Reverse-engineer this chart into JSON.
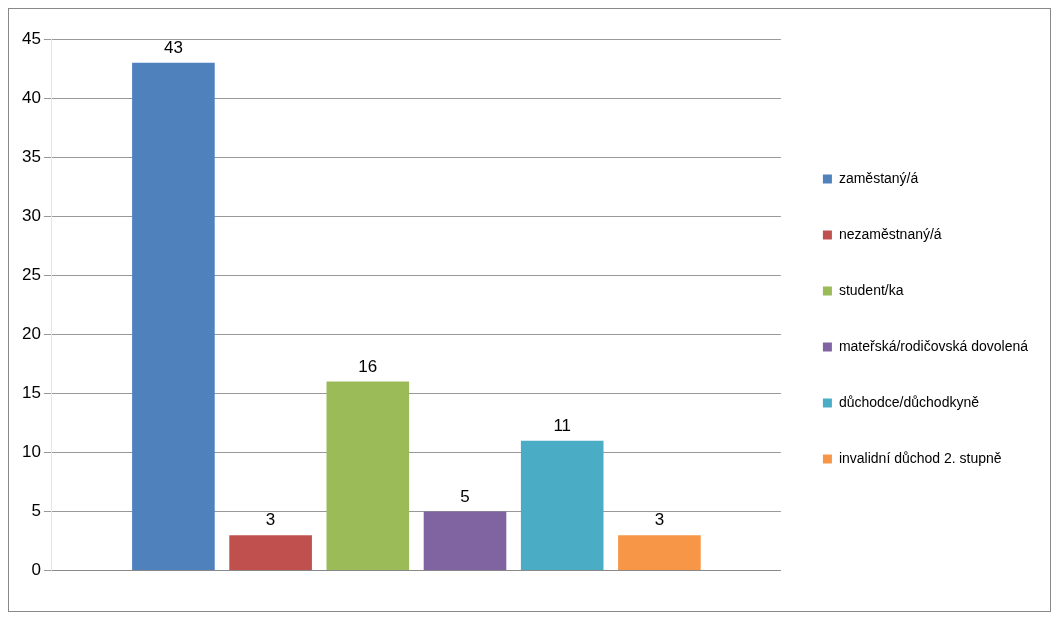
{
  "chart_data": {
    "type": "bar",
    "categories": [
      null
    ],
    "series": [
      {
        "name": "zaměstaný/á",
        "color": "#4f81bd",
        "values": [
          43
        ]
      },
      {
        "name": "nezaměstnaný/á",
        "color": "#c0504d",
        "values": [
          3
        ]
      },
      {
        "name": "student/ka",
        "color": "#9bbb59",
        "values": [
          16
        ]
      },
      {
        "name": "mateřská/rodičovská dovolená",
        "color": "#8064a2",
        "values": [
          5
        ]
      },
      {
        "name": "důchodce/důchodkyně",
        "color": "#4bacc6",
        "values": [
          11
        ]
      },
      {
        "name": "invalidní důchod 2. stupně",
        "color": "#f79646",
        "values": [
          3
        ]
      }
    ],
    "ylim": [
      0,
      45
    ],
    "yticks": [
      0,
      5,
      10,
      15,
      20,
      25,
      30,
      35,
      40,
      45
    ],
    "grid": "y",
    "legend": "right",
    "data_labels": true
  }
}
